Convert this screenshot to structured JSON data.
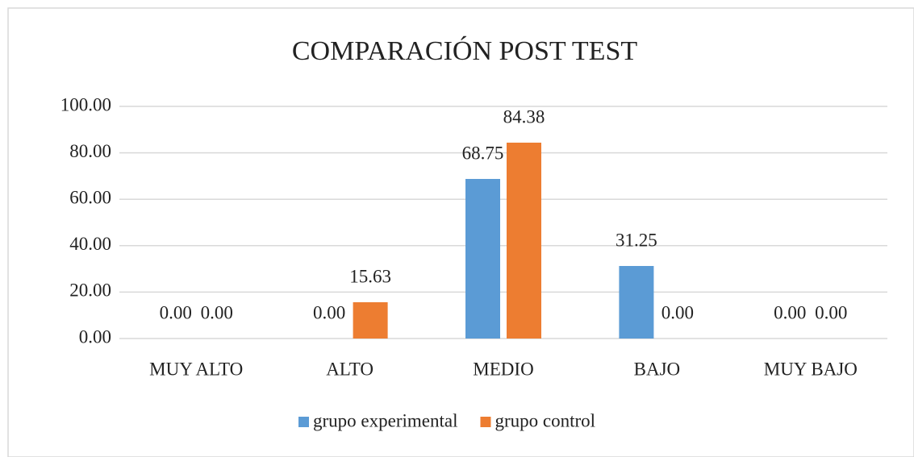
{
  "chart_data": {
    "type": "bar",
    "title": "COMPARACIÓN POST TEST",
    "categories": [
      "MUY ALTO",
      "ALTO",
      "MEDIO",
      "BAJO",
      "MUY BAJO"
    ],
    "series": [
      {
        "name": "grupo experimental",
        "color": "#5b9bd5",
        "values": [
          0,
          0,
          68.75,
          31.25,
          0
        ],
        "value_labels": [
          "0.00",
          "0.00",
          "68.75",
          "31.25",
          "0.00"
        ]
      },
      {
        "name": "grupo control",
        "color": "#ed7d31",
        "values": [
          0,
          15.63,
          84.38,
          0,
          0
        ],
        "value_labels": [
          "0.00",
          "15.63",
          "84.38",
          "0.00",
          "0.00"
        ]
      }
    ],
    "ylim": [
      0,
      100
    ],
    "yticks": [
      {
        "value": 0,
        "label": "0.00"
      },
      {
        "value": 20,
        "label": "20.00"
      },
      {
        "value": 40,
        "label": "40.00"
      },
      {
        "value": 60,
        "label": "60.00"
      },
      {
        "value": 80,
        "label": "80.00"
      },
      {
        "value": 100,
        "label": "100.00"
      }
    ],
    "grid": true,
    "legend": "bottom"
  }
}
